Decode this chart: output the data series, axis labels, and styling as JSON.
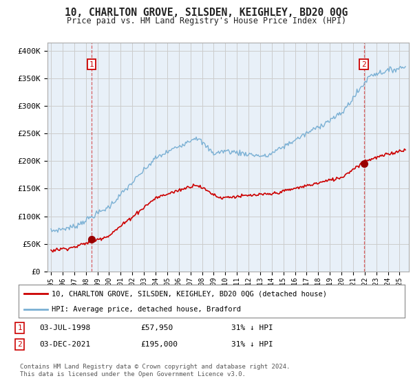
{
  "title": "10, CHARLTON GROVE, SILSDEN, KEIGHLEY, BD20 0QG",
  "subtitle": "Price paid vs. HM Land Registry's House Price Index (HPI)",
  "ylabel_ticks": [
    "£0",
    "£50K",
    "£100K",
    "£150K",
    "£200K",
    "£250K",
    "£300K",
    "£350K",
    "£400K"
  ],
  "ylabel_values": [
    0,
    50000,
    100000,
    150000,
    200000,
    250000,
    300000,
    350000,
    400000
  ],
  "ylim": [
    0,
    415000
  ],
  "xlim_start": 1994.7,
  "xlim_end": 2025.8,
  "point1_x": 1998.5,
  "point1_y": 57950,
  "point1_label": "1",
  "point2_x": 2021.92,
  "point2_y": 195000,
  "point2_label": "2",
  "legend_line1": "10, CHARLTON GROVE, SILSDEN, KEIGHLEY, BD20 0QG (detached house)",
  "legend_line2": "HPI: Average price, detached house, Bradford",
  "line_color_red": "#cc0000",
  "line_color_blue": "#7ab0d4",
  "grid_color": "#cccccc",
  "bg_color": "#ffffff",
  "plot_bg_color": "#e8f0f8",
  "point_color_red": "#990000",
  "xtick_years": [
    1995,
    1996,
    1997,
    1998,
    1999,
    2000,
    2001,
    2002,
    2003,
    2004,
    2005,
    2006,
    2007,
    2008,
    2009,
    2010,
    2011,
    2012,
    2013,
    2014,
    2015,
    2016,
    2017,
    2018,
    2019,
    2020,
    2021,
    2022,
    2023,
    2024,
    2025
  ],
  "footer": "Contains HM Land Registry data © Crown copyright and database right 2024.\nThis data is licensed under the Open Government Licence v3.0."
}
